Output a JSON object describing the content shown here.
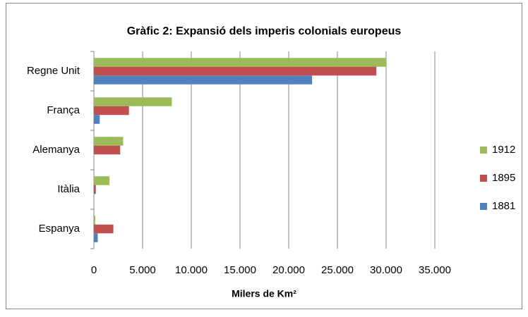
{
  "chart_data": {
    "type": "hbar",
    "title": "Gràfic 2: Expansió  dels imperis colonials europeus",
    "x_label": "Milers de Km²",
    "categories": [
      "Regne Unit",
      "França",
      "Alemanya",
      "Itàlia",
      "Espanya"
    ],
    "series": [
      {
        "name": "1912",
        "color": "#9bbb59",
        "values": [
          30000,
          8000,
          3000,
          1600,
          150
        ]
      },
      {
        "name": "1895",
        "color": "#c0504d",
        "values": [
          29000,
          3600,
          2700,
          200,
          2000
        ]
      },
      {
        "name": "1881",
        "color": "#4f81bd",
        "values": [
          22400,
          600,
          0,
          0,
          400
        ]
      }
    ],
    "xlim": [
      0,
      35000
    ],
    "xticks": [
      0,
      {
        "value": 5000,
        "label": "5.000"
      },
      {
        "value": 10000,
        "label": "10.000"
      },
      {
        "value": 15000,
        "label": "15.000"
      },
      {
        "value": 20000,
        "label": "20.000"
      },
      {
        "value": 25000,
        "label": "25.000"
      },
      {
        "value": 30000,
        "label": "30.000"
      },
      {
        "value": 35000,
        "label": "35.000"
      }
    ],
    "grid": true,
    "legend": "right"
  }
}
